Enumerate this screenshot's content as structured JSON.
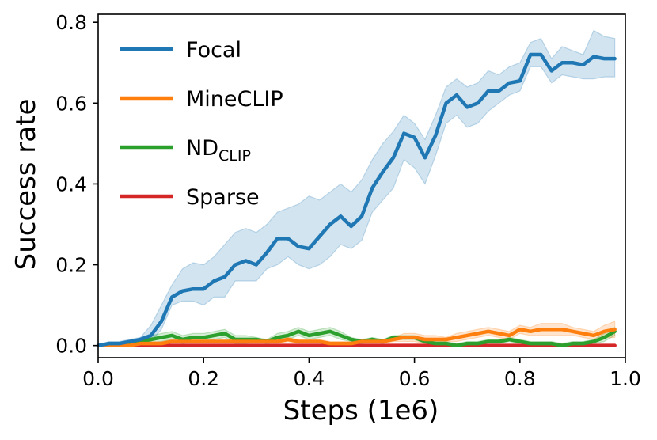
{
  "chart_data": {
    "type": "line",
    "xlabel": "Steps (1e6)",
    "ylabel": "Success rate",
    "xlim": [
      0.0,
      1.0
    ],
    "ylim": [
      -0.03,
      0.82
    ],
    "xticks": [
      "0.0",
      "0.2",
      "0.4",
      "0.6",
      "0.8",
      "1.0"
    ],
    "yticks": [
      "0.0",
      "0.2",
      "0.4",
      "0.6",
      "0.8"
    ],
    "grid": false,
    "legend_position": "top-left",
    "x": [
      0.0,
      0.02,
      0.04,
      0.06,
      0.08,
      0.1,
      0.12,
      0.14,
      0.16,
      0.18,
      0.2,
      0.22,
      0.24,
      0.26,
      0.28,
      0.3,
      0.32,
      0.34,
      0.36,
      0.38,
      0.4,
      0.42,
      0.44,
      0.46,
      0.48,
      0.5,
      0.52,
      0.54,
      0.56,
      0.58,
      0.6,
      0.62,
      0.64,
      0.66,
      0.68,
      0.7,
      0.72,
      0.74,
      0.76,
      0.78,
      0.8,
      0.82,
      0.84,
      0.86,
      0.88,
      0.9,
      0.92,
      0.94,
      0.96,
      0.98
    ],
    "series": [
      {
        "name": "Focal",
        "color": "#1f77b4",
        "values": [
          0.0,
          0.005,
          0.005,
          0.01,
          0.015,
          0.025,
          0.06,
          0.12,
          0.135,
          0.14,
          0.14,
          0.16,
          0.17,
          0.2,
          0.21,
          0.2,
          0.23,
          0.265,
          0.265,
          0.245,
          0.24,
          0.27,
          0.3,
          0.32,
          0.295,
          0.32,
          0.39,
          0.43,
          0.465,
          0.525,
          0.515,
          0.465,
          0.52,
          0.6,
          0.62,
          0.59,
          0.6,
          0.63,
          0.63,
          0.65,
          0.655,
          0.72,
          0.72,
          0.68,
          0.7,
          0.7,
          0.695,
          0.715,
          0.71,
          0.71
        ],
        "upper": [
          0.0,
          0.01,
          0.01,
          0.015,
          0.02,
          0.05,
          0.1,
          0.15,
          0.19,
          0.205,
          0.2,
          0.22,
          0.25,
          0.28,
          0.29,
          0.28,
          0.3,
          0.33,
          0.34,
          0.35,
          0.37,
          0.36,
          0.38,
          0.4,
          0.38,
          0.41,
          0.46,
          0.5,
          0.53,
          0.57,
          0.55,
          0.51,
          0.57,
          0.64,
          0.66,
          0.64,
          0.65,
          0.68,
          0.67,
          0.69,
          0.7,
          0.75,
          0.76,
          0.71,
          0.74,
          0.73,
          0.72,
          0.78,
          0.765,
          0.76
        ],
        "lower": [
          0.0,
          0.0,
          0.0,
          0.005,
          0.01,
          0.01,
          0.04,
          0.1,
          0.11,
          0.11,
          0.1,
          0.12,
          0.12,
          0.16,
          0.16,
          0.16,
          0.19,
          0.2,
          0.22,
          0.2,
          0.19,
          0.2,
          0.22,
          0.25,
          0.24,
          0.26,
          0.33,
          0.36,
          0.39,
          0.46,
          0.44,
          0.4,
          0.47,
          0.55,
          0.57,
          0.54,
          0.55,
          0.58,
          0.6,
          0.62,
          0.63,
          0.69,
          0.69,
          0.65,
          0.67,
          0.665,
          0.66,
          0.66,
          0.665,
          0.665
        ]
      },
      {
        "name": "MineCLIP",
        "color": "#ff7f0e",
        "values": [
          0.0,
          0.0,
          0.0,
          0.0,
          0.005,
          0.005,
          0.005,
          0.01,
          0.01,
          0.01,
          0.01,
          0.01,
          0.01,
          0.01,
          0.01,
          0.01,
          0.01,
          0.01,
          0.015,
          0.01,
          0.01,
          0.01,
          0.005,
          0.005,
          0.005,
          0.01,
          0.01,
          0.01,
          0.015,
          0.02,
          0.02,
          0.015,
          0.015,
          0.015,
          0.02,
          0.025,
          0.03,
          0.035,
          0.03,
          0.025,
          0.04,
          0.035,
          0.04,
          0.04,
          0.04,
          0.035,
          0.03,
          0.025,
          0.035,
          0.04
        ],
        "upper": [
          0.0,
          0.0,
          0.0,
          0.0,
          0.01,
          0.01,
          0.01,
          0.015,
          0.015,
          0.015,
          0.015,
          0.015,
          0.015,
          0.015,
          0.015,
          0.015,
          0.015,
          0.015,
          0.02,
          0.015,
          0.015,
          0.015,
          0.01,
          0.01,
          0.01,
          0.015,
          0.015,
          0.015,
          0.02,
          0.03,
          0.03,
          0.025,
          0.025,
          0.02,
          0.03,
          0.035,
          0.04,
          0.045,
          0.04,
          0.035,
          0.05,
          0.045,
          0.055,
          0.055,
          0.055,
          0.045,
          0.04,
          0.035,
          0.05,
          0.06
        ],
        "lower": [
          0.0,
          0.0,
          0.0,
          0.0,
          0.0,
          0.0,
          0.0,
          0.005,
          0.005,
          0.005,
          0.005,
          0.005,
          0.005,
          0.005,
          0.005,
          0.005,
          0.005,
          0.005,
          0.01,
          0.005,
          0.005,
          0.005,
          0.0,
          0.0,
          0.0,
          0.005,
          0.005,
          0.005,
          0.01,
          0.01,
          0.01,
          0.005,
          0.005,
          0.01,
          0.01,
          0.015,
          0.02,
          0.025,
          0.02,
          0.015,
          0.03,
          0.025,
          0.025,
          0.025,
          0.025,
          0.025,
          0.02,
          0.015,
          0.02,
          0.02
        ]
      },
      {
        "name": "ND",
        "name_subscript": "CLIP",
        "color": "#2ca02c",
        "values": [
          0.0,
          0.0,
          0.0,
          0.005,
          0.01,
          0.015,
          0.02,
          0.025,
          0.015,
          0.02,
          0.02,
          0.025,
          0.03,
          0.015,
          0.015,
          0.015,
          0.01,
          0.02,
          0.025,
          0.035,
          0.025,
          0.03,
          0.035,
          0.025,
          0.015,
          0.01,
          0.015,
          0.01,
          0.02,
          0.02,
          0.02,
          0.01,
          0.005,
          0.005,
          0.0,
          0.005,
          0.005,
          0.01,
          0.01,
          0.015,
          0.01,
          0.005,
          0.005,
          0.005,
          0.0,
          0.005,
          0.005,
          0.01,
          0.02,
          0.035
        ],
        "upper": [
          0.0,
          0.0,
          0.0,
          0.01,
          0.015,
          0.025,
          0.03,
          0.035,
          0.025,
          0.03,
          0.03,
          0.035,
          0.04,
          0.025,
          0.025,
          0.02,
          0.015,
          0.03,
          0.035,
          0.045,
          0.035,
          0.04,
          0.045,
          0.035,
          0.02,
          0.015,
          0.02,
          0.015,
          0.025,
          0.025,
          0.025,
          0.015,
          0.01,
          0.01,
          0.005,
          0.01,
          0.01,
          0.015,
          0.015,
          0.02,
          0.015,
          0.01,
          0.01,
          0.01,
          0.005,
          0.01,
          0.01,
          0.015,
          0.03,
          0.045
        ],
        "lower": [
          0.0,
          0.0,
          0.0,
          0.0,
          0.005,
          0.005,
          0.01,
          0.015,
          0.005,
          0.01,
          0.01,
          0.015,
          0.02,
          0.005,
          0.005,
          0.01,
          0.005,
          0.01,
          0.015,
          0.025,
          0.015,
          0.02,
          0.025,
          0.015,
          0.01,
          0.005,
          0.01,
          0.005,
          0.015,
          0.015,
          0.015,
          0.005,
          0.0,
          0.0,
          0.0,
          0.0,
          0.0,
          0.005,
          0.005,
          0.01,
          0.005,
          0.0,
          0.0,
          0.0,
          0.0,
          0.0,
          0.0,
          0.005,
          0.01,
          0.025
        ]
      },
      {
        "name": "Sparse",
        "color": "#d62728",
        "values": [
          0.0,
          0.0,
          0.0,
          0.0,
          0.0,
          0.0,
          0.0,
          0.0,
          0.0,
          0.0,
          0.0,
          0.0,
          0.0,
          0.0,
          0.0,
          0.0,
          0.0,
          0.0,
          0.0,
          0.0,
          0.0,
          0.0,
          0.0,
          0.0,
          0.0,
          0.0,
          0.0,
          0.0,
          0.0,
          0.0,
          0.0,
          0.0,
          0.0,
          0.0,
          0.0,
          0.0,
          0.0,
          0.0,
          0.0,
          0.0,
          0.0,
          0.0,
          0.0,
          0.0,
          0.0,
          0.0,
          0.0,
          0.0,
          0.0,
          0.0
        ]
      }
    ]
  }
}
